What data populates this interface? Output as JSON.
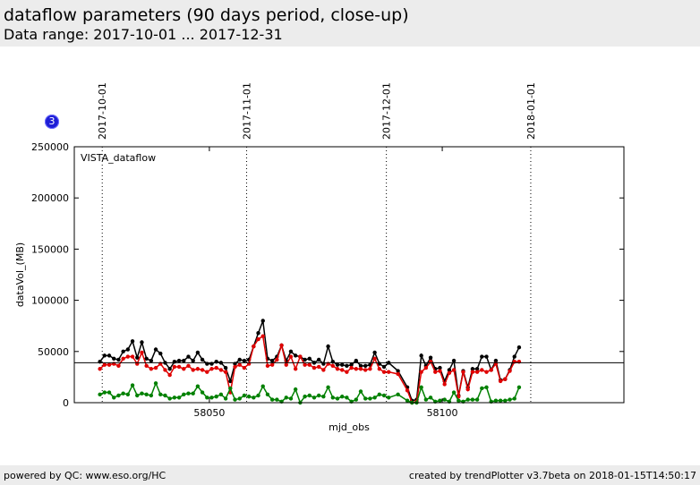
{
  "header": {
    "title": "dataflow parameters (90 days period, close-up)",
    "subtitle": "Data range: 2017-10-01 ... 2017-12-31"
  },
  "footer": {
    "left": "powered by QC: www.eso.org/HC",
    "right": "created by trendPlotter v3.7beta on 2018-01-15T14:50:17"
  },
  "badge": {
    "value": "3"
  },
  "chart_data": {
    "type": "line",
    "panel_label": "VISTA_dataflow",
    "xlabel": "mjd_obs",
    "ylabel": "dataVol_(MB)",
    "xlim": [
      58021,
      58139
    ],
    "ylim": [
      0,
      250000
    ],
    "x_ticks": [
      58050,
      58100
    ],
    "y_ticks": [
      0,
      50000,
      100000,
      150000,
      200000,
      250000
    ],
    "date_markers": [
      {
        "label": "2017-10-01",
        "x": 58027
      },
      {
        "label": "2017-11-01",
        "x": 58058
      },
      {
        "label": "2017-12-01",
        "x": 58088
      },
      {
        "label": "2018-01-01",
        "x": 58119
      }
    ],
    "reference_line": 39000,
    "grid": false,
    "colors": {
      "black_series": "#000000",
      "red_series": "#e00000",
      "green_series": "#008000"
    },
    "x": [
      58026.5,
      58027.5,
      58028.5,
      58029.5,
      58030.5,
      58031.5,
      58032.5,
      58033.5,
      58034.5,
      58035.5,
      58036.5,
      58037.5,
      58038.5,
      58039.5,
      58040.5,
      58041.5,
      58042.5,
      58043.5,
      58044.5,
      58045.5,
      58046.5,
      58047.5,
      58048.5,
      58049.5,
      58050.5,
      58051.5,
      58052.5,
      58053.5,
      58054.5,
      58055.5,
      58056.5,
      58057.5,
      58058.5,
      58059.5,
      58060.5,
      58061.5,
      58062.5,
      58063.5,
      58064.5,
      58065.5,
      58066.5,
      58067.5,
      58068.5,
      58069.5,
      58070.5,
      58071.5,
      58072.5,
      58073.5,
      58074.5,
      58075.5,
      58076.5,
      58077.5,
      58078.5,
      58079.5,
      58080.5,
      58081.5,
      58082.5,
      58083.5,
      58084.5,
      58085.5,
      58086.5,
      58087.5,
      58088.5,
      58090.5,
      58092.5,
      58093.5,
      58094.5,
      58095.5,
      58096.5,
      58097.5,
      58098.5,
      58099.5,
      58100.5,
      58101.5,
      58102.5,
      58103.5,
      58104.5,
      58105.5,
      58106.5,
      58107.5,
      58108.5,
      58109.5,
      58110.5,
      58111.5,
      58112.5,
      58113.5,
      58114.5,
      58115.5,
      58116.5,
      58117.5
    ],
    "series": [
      {
        "name": "",
        "values": [
          40000,
          46000,
          46000,
          43000,
          42000,
          50000,
          52000,
          60000,
          44000,
          59000,
          43000,
          41000,
          52000,
          48000,
          39000,
          33000,
          40000,
          41000,
          41000,
          45000,
          41000,
          49000,
          42000,
          38000,
          38000,
          40000,
          39000,
          34000,
          21000,
          38000,
          42000,
          41000,
          42000,
          55000,
          68000,
          80000,
          43000,
          41000,
          45000,
          56000,
          41000,
          50000,
          46000,
          45000,
          42000,
          43000,
          39000,
          42000,
          38000,
          55000,
          40000,
          37000,
          37000,
          36000,
          37000,
          41000,
          36000,
          36000,
          37000,
          49000,
          38000,
          35000,
          39000,
          31000,
          15000,
          2000,
          3000,
          46000,
          36000,
          44000,
          33000,
          34000,
          21000,
          32000,
          41000,
          7000,
          31000,
          15000,
          33000,
          33000,
          45000,
          45000,
          32000,
          41000,
          22000,
          23000,
          32000,
          45000,
          54000,
          null
        ]
      },
      {
        "name": "",
        "values": [
          33000,
          37000,
          37000,
          38000,
          36000,
          43000,
          45000,
          45000,
          38000,
          49000,
          36000,
          33000,
          34000,
          38000,
          32000,
          27000,
          35000,
          35000,
          33000,
          36000,
          32000,
          33000,
          32000,
          30000,
          33000,
          34000,
          32000,
          30000,
          10000,
          35000,
          37000,
          34000,
          38000,
          55000,
          62000,
          65000,
          36000,
          37000,
          42000,
          56000,
          37000,
          45000,
          33000,
          45000,
          37000,
          37000,
          34000,
          35000,
          32000,
          38000,
          36000,
          33000,
          32000,
          30000,
          34000,
          33000,
          33000,
          32000,
          33000,
          43000,
          33000,
          30000,
          30000,
          28000,
          12000,
          0,
          1000,
          30000,
          34000,
          40000,
          30000,
          31000,
          18000,
          29000,
          32000,
          6000,
          30000,
          13000,
          30000,
          30000,
          32000,
          30000,
          32000,
          38000,
          21000,
          23000,
          31000,
          40000,
          40000,
          null
        ]
      },
      {
        "name": "",
        "values": [
          8000,
          10000,
          10000,
          5000,
          7000,
          9000,
          8000,
          17000,
          7000,
          9000,
          8000,
          7000,
          19000,
          8000,
          7000,
          4000,
          5000,
          5000,
          8000,
          9000,
          9000,
          16000,
          10000,
          5000,
          5000,
          6000,
          8000,
          4000,
          14000,
          3000,
          4000,
          7000,
          6000,
          5000,
          7000,
          16000,
          8000,
          3000,
          3000,
          1000,
          5000,
          4000,
          13000,
          0,
          6000,
          7000,
          5000,
          7000,
          6000,
          15000,
          5000,
          4000,
          6000,
          5000,
          1000,
          3000,
          11000,
          4000,
          4000,
          5000,
          8000,
          7000,
          5000,
          8000,
          2000,
          0,
          0,
          15000,
          3000,
          5000,
          1000,
          2000,
          3000,
          1000,
          10000,
          2000,
          1000,
          3000,
          3000,
          3000,
          14000,
          15000,
          1000,
          2000,
          2000,
          2000,
          3000,
          4000,
          15000,
          null
        ]
      }
    ]
  }
}
